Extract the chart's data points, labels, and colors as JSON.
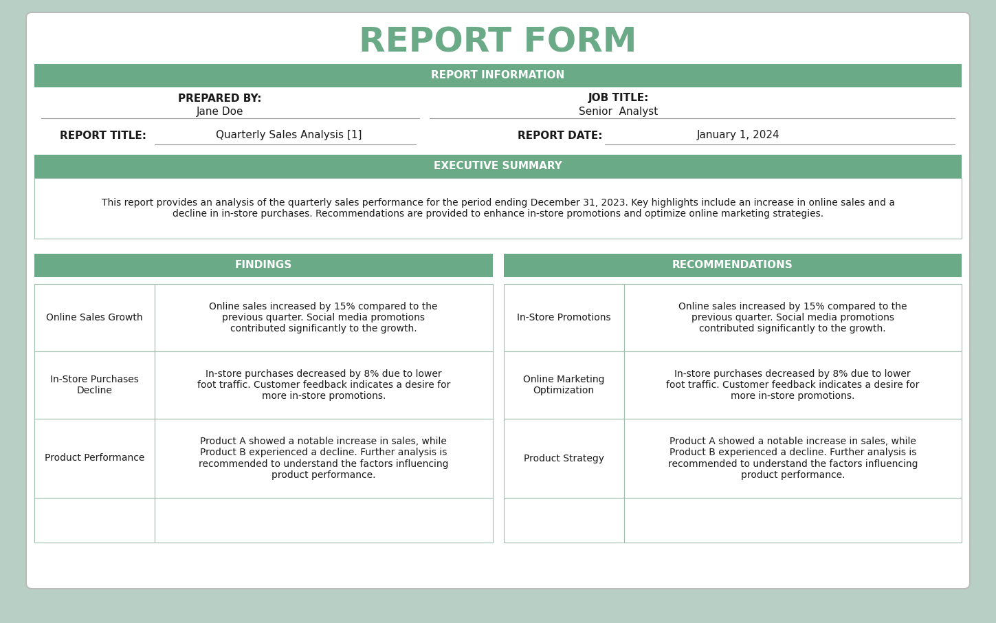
{
  "title": "REPORT FORM",
  "title_color": "#6aaa86",
  "header_bg": "#6aaa86",
  "header_text_color": "#ffffff",
  "bg_color": "#ffffff",
  "outer_bg": "#b8cfc5",
  "cell_border_color": "#9dbdad",
  "text_color": "#1a1a1a",
  "label_color": "#1a1a1a",
  "line_color": "#888888",
  "section1_header": "REPORT INFORMATION",
  "prepared_by_label": "PREPARED BY:",
  "prepared_by_value": "Jane Doe",
  "job_title_label": "JOB TITLE:",
  "job_title_value": "Senior  Analyst",
  "report_title_label": "REPORT TITLE:",
  "report_title_value": "Quarterly Sales Analysis [1]",
  "report_date_label": "REPORT DATE:",
  "report_date_value": "January 1, 2024",
  "section2_header": "EXECUTIVE SUMMARY",
  "summary_line1": "This report provides an analysis of the quarterly sales performance for the period ending December 31, 2023. Key highlights include an increase in online sales and a",
  "summary_line2": "decline in in-store purchases. Recommendations are provided to enhance in-store promotions and optimize online marketing strategies.",
  "findings_header": "FINDINGS",
  "recommendations_header": "RECOMMENDATIONS",
  "findings": [
    {
      "label": "Online Sales Growth",
      "text": "Online sales increased by 15% compared to the\nprevious quarter. Social media promotions\ncontributed significantly to the growth."
    },
    {
      "label": "In-Store Purchases\nDecline",
      "text": "In-store purchases decreased by 8% due to lower\nfoot traffic. Customer feedback indicates a desire for\nmore in-store promotions."
    },
    {
      "label": "Product Performance",
      "text": "Product A showed a notable increase in sales, while\nProduct B experienced a decline. Further analysis is\nrecommended to understand the factors influencing\nproduct performance."
    },
    {
      "label": "",
      "text": ""
    }
  ],
  "recommendations": [
    {
      "label": "In-Store Promotions",
      "text": "Online sales increased by 15% compared to the\nprevious quarter. Social media promotions\ncontributed significantly to the growth."
    },
    {
      "label": "Online Marketing\nOptimization",
      "text": "In-store purchases decreased by 8% due to lower\nfoot traffic. Customer feedback indicates a desire for\nmore in-store promotions."
    },
    {
      "label": "Product Strategy",
      "text": "Product A showed a notable increase in sales, while\nProduct B experienced a decline. Further analysis is\nrecommended to understand the factors influencing\nproduct performance."
    },
    {
      "label": "",
      "text": ""
    }
  ]
}
